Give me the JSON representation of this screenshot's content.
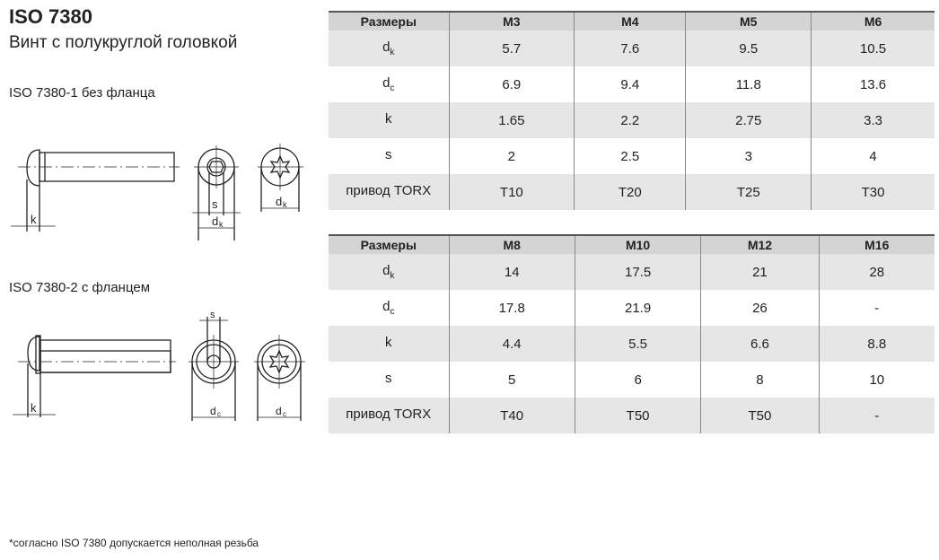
{
  "title": "ISO 7380",
  "subtitle": "Винт с полукруглой головкой",
  "variant1": {
    "caption": "ISO 7380-1 без фланца",
    "labels": {
      "k": "k",
      "s": "s",
      "dk": "d",
      "dk_sub": "k"
    }
  },
  "variant2": {
    "caption": "ISO 7380-2 с фланцем",
    "labels": {
      "k": "k",
      "s": "s",
      "dc": "d",
      "dc_sub": "c"
    }
  },
  "tables": [
    {
      "headers": [
        "Размеры",
        "M3",
        "M4",
        "M5",
        "M6"
      ],
      "rows": [
        {
          "label": "d",
          "sub": "k",
          "values": [
            "5.7",
            "7.6",
            "9.5",
            "10.5"
          ]
        },
        {
          "label": "d",
          "sub": "c",
          "values": [
            "6.9",
            "9.4",
            "11.8",
            "13.6"
          ]
        },
        {
          "label": "k",
          "sub": "",
          "values": [
            "1.65",
            "2.2",
            "2.75",
            "3.3"
          ]
        },
        {
          "label": "s",
          "sub": "",
          "values": [
            "2",
            "2.5",
            "3",
            "4"
          ]
        },
        {
          "label": "привод TORX",
          "sub": "",
          "values": [
            "T10",
            "T20",
            "T25",
            "T30"
          ]
        }
      ]
    },
    {
      "headers": [
        "Размеры",
        "M8",
        "M10",
        "M12",
        "M16"
      ],
      "rows": [
        {
          "label": "d",
          "sub": "k",
          "values": [
            "14",
            "17.5",
            "21",
            "28"
          ]
        },
        {
          "label": "d",
          "sub": "c",
          "values": [
            "17.8",
            "21.9",
            "26",
            "-"
          ]
        },
        {
          "label": "k",
          "sub": "",
          "values": [
            "4.4",
            "5.5",
            "6.6",
            "8.8"
          ]
        },
        {
          "label": "s",
          "sub": "",
          "values": [
            "5",
            "6",
            "8",
            "10"
          ]
        },
        {
          "label": "привод TORX",
          "sub": "",
          "values": [
            "T40",
            "T50",
            "T50",
            "-"
          ]
        }
      ]
    }
  ],
  "footnote": "*согласно ISO 7380 допускается неполная резьба"
}
